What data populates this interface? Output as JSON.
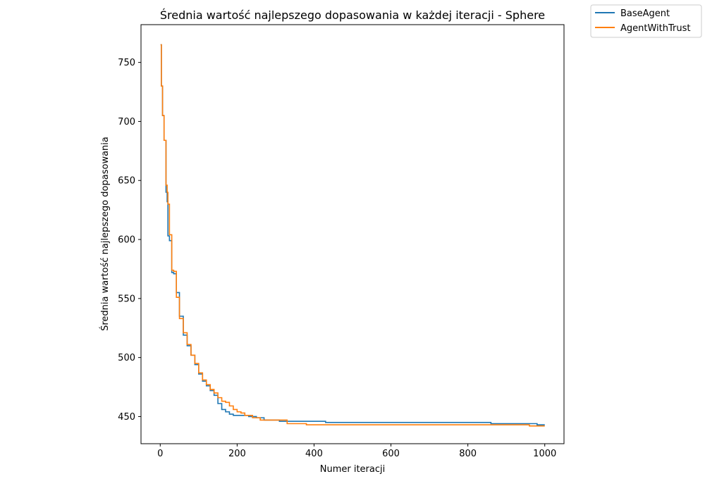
{
  "chart_data": {
    "type": "line",
    "title": "Średnia wartość najlepszego dopasowania w każdej iteracji - Sphere",
    "xlabel": "Numer iteracji",
    "ylabel": "Średnia wartość najlepszego dopasowania",
    "xlim": [
      -50,
      1050
    ],
    "ylim": [
      427,
      782
    ],
    "xticks": [
      0,
      200,
      400,
      600,
      800,
      1000
    ],
    "yticks": [
      450,
      500,
      550,
      600,
      650,
      700,
      750
    ],
    "grid": false,
    "legend_position": "outside top-right",
    "series": [
      {
        "name": "BaseAgent",
        "color": "#1f77b4",
        "step": true,
        "x": [
          1,
          3,
          6,
          10,
          15,
          18,
          20,
          24,
          30,
          35,
          42,
          50,
          60,
          70,
          80,
          90,
          100,
          110,
          120,
          130,
          140,
          150,
          160,
          170,
          180,
          190,
          210,
          230,
          250,
          270,
          290,
          310,
          330,
          380,
          430,
          500,
          600,
          700,
          800,
          860,
          920,
          980,
          1000
        ],
        "y": [
          765,
          730,
          705,
          684,
          640,
          632,
          603,
          599,
          572,
          571,
          555,
          535,
          519,
          510,
          502,
          494,
          486,
          480,
          476,
          472,
          468,
          461,
          456,
          454,
          452,
          451,
          451,
          450,
          449,
          447,
          447,
          446,
          446,
          446,
          445,
          445,
          445,
          445,
          445,
          444,
          444,
          443,
          443
        ]
      },
      {
        "name": "AgentWithTrust",
        "color": "#ff7f0e",
        "step": true,
        "x": [
          1,
          3,
          6,
          10,
          15,
          18,
          20,
          24,
          30,
          35,
          42,
          50,
          60,
          70,
          80,
          90,
          100,
          110,
          120,
          130,
          140,
          150,
          160,
          170,
          180,
          190,
          200,
          210,
          220,
          240,
          260,
          280,
          300,
          330,
          380,
          470,
          560,
          660,
          800,
          900,
          960,
          1000
        ],
        "y": [
          765,
          730,
          705,
          684,
          646,
          640,
          630,
          604,
          574,
          573,
          551,
          533,
          521,
          511,
          502,
          495,
          487,
          481,
          477,
          473,
          470,
          466,
          463,
          462,
          459,
          456,
          454,
          453,
          451,
          449,
          447,
          447,
          447,
          444,
          443,
          443,
          443,
          443,
          443,
          443,
          442,
          442
        ]
      }
    ]
  }
}
